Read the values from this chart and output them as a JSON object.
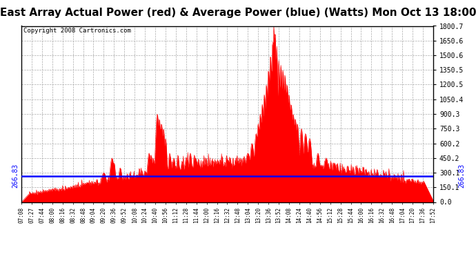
{
  "title": "East Array Actual Power (red) & Average Power (blue) (Watts) Mon Oct 13 18:00",
  "copyright": "Copyright 2008 Cartronics.com",
  "avg_power": 266.83,
  "y_min": 0.0,
  "y_max": 1800.7,
  "y_ticks": [
    0.0,
    150.1,
    300.1,
    450.2,
    600.2,
    750.3,
    900.3,
    1050.4,
    1200.5,
    1350.5,
    1500.6,
    1650.6,
    1800.7
  ],
  "x_labels": [
    "07:08",
    "07:27",
    "07:44",
    "08:00",
    "08:16",
    "08:32",
    "08:48",
    "09:04",
    "09:20",
    "09:36",
    "09:52",
    "10:08",
    "10:24",
    "10:40",
    "10:56",
    "11:12",
    "11:28",
    "11:44",
    "12:00",
    "12:16",
    "12:32",
    "12:48",
    "13:04",
    "13:20",
    "13:36",
    "13:52",
    "14:08",
    "14:24",
    "14:40",
    "14:56",
    "15:12",
    "15:28",
    "15:44",
    "16:00",
    "16:16",
    "16:32",
    "16:48",
    "17:04",
    "17:20",
    "17:36",
    "17:52"
  ],
  "fill_color": "#ff0000",
  "line_color": "#0000ff",
  "background_color": "#ffffff",
  "grid_color": "#aaaaaa",
  "title_fontsize": 11,
  "copyright_fontsize": 6.5,
  "avg_label_fontsize": 7
}
